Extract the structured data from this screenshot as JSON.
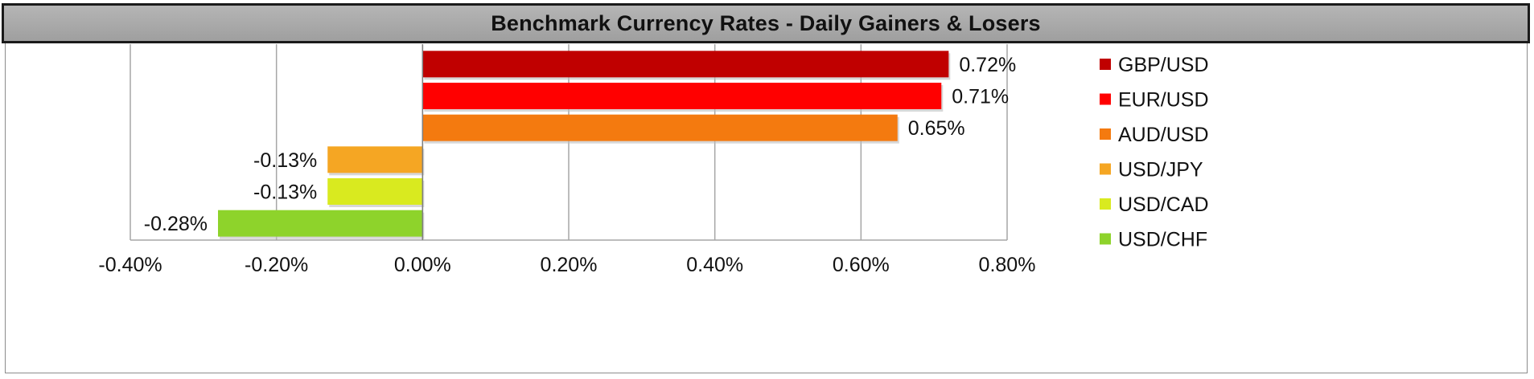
{
  "chart_data": {
    "type": "bar",
    "orientation": "horizontal",
    "title": "Benchmark Currency Rates - Daily Gainers & Losers",
    "categories": [
      "GBP/USD",
      "EUR/USD",
      "AUD/USD",
      "USD/JPY",
      "USD/CAD",
      "USD/CHF"
    ],
    "values": [
      0.72,
      0.71,
      0.65,
      -0.13,
      -0.13,
      -0.28
    ],
    "value_labels": [
      "0.72%",
      "0.71%",
      "0.65%",
      "-0.13%",
      "-0.13%",
      "-0.28%"
    ],
    "colors": [
      "#C00000",
      "#FF0000",
      "#F47A0F",
      "#F5A623",
      "#D9EA1F",
      "#8ED32B"
    ],
    "xlim": [
      -0.4,
      0.8
    ],
    "xticks": [
      -0.4,
      -0.2,
      0.0,
      0.2,
      0.4,
      0.6,
      0.8
    ],
    "xtick_labels": [
      "-0.40%",
      "-0.20%",
      "0.00%",
      "0.20%",
      "0.40%",
      "0.60%",
      "0.80%"
    ],
    "xlabel": "",
    "ylabel": "",
    "grid": "vertical",
    "legend": "right",
    "legend_entries": [
      "GBP/USD",
      "EUR/USD",
      "AUD/USD",
      "USD/JPY",
      "USD/CAD",
      "USD/CHF"
    ]
  }
}
